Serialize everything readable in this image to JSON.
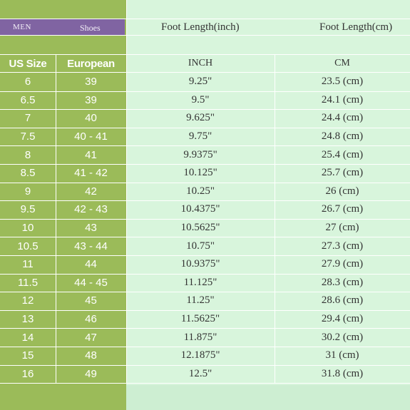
{
  "header": {
    "men_label": "MEN",
    "shoes_label": "Shoes",
    "foot_length_inch": "Foot Length(inch)",
    "foot_length_cm": "Foot Length(cm)"
  },
  "columns": {
    "us_size": "US Size",
    "european": "European",
    "inch": "INCH",
    "cm": "CM"
  },
  "rows": [
    {
      "us": "6",
      "eu": "39",
      "inch": "9.25\"",
      "cm": "23.5 (cm)"
    },
    {
      "us": "6.5",
      "eu": "39",
      "inch": "9.5\"",
      "cm": "24.1 (cm)"
    },
    {
      "us": "7",
      "eu": "40",
      "inch": "9.625\"",
      "cm": "24.4 (cm)"
    },
    {
      "us": "7.5",
      "eu": "40 - 41",
      "inch": "9.75\"",
      "cm": "24.8 (cm)"
    },
    {
      "us": "8",
      "eu": "41",
      "inch": "9.9375\"",
      "cm": "25.4 (cm)"
    },
    {
      "us": "8.5",
      "eu": "41 - 42",
      "inch": "10.125\"",
      "cm": "25.7 (cm)"
    },
    {
      "us": "9",
      "eu": "42",
      "inch": "10.25\"",
      "cm": "26 (cm)"
    },
    {
      "us": "9.5",
      "eu": "42 - 43",
      "inch": "10.4375\"",
      "cm": "26.7 (cm)"
    },
    {
      "us": "10",
      "eu": "43",
      "inch": "10.5625\"",
      "cm": "27 (cm)"
    },
    {
      "us": "10.5",
      "eu": "43 - 44",
      "inch": "10.75\"",
      "cm": "27.3 (cm)"
    },
    {
      "us": "11",
      "eu": "44",
      "inch": "10.9375\"",
      "cm": "27.9 (cm)"
    },
    {
      "us": "11.5",
      "eu": "44 - 45",
      "inch": "11.125\"",
      "cm": "28.3 (cm)"
    },
    {
      "us": "12",
      "eu": "45",
      "inch": "11.25\"",
      "cm": "28.6 (cm)"
    },
    {
      "us": "13",
      "eu": "46",
      "inch": "11.5625\"",
      "cm": "29.4 (cm)"
    },
    {
      "us": "14",
      "eu": "47",
      "inch": "11.875\"",
      "cm": "30.2 (cm)"
    },
    {
      "us": "15",
      "eu": "48",
      "inch": "12.1875\"",
      "cm": "31 (cm)"
    },
    {
      "us": "16",
      "eu": "49",
      "inch": "12.5\"",
      "cm": "31.8 (cm)"
    }
  ],
  "colors": {
    "left_green": "#9bbb59",
    "right_mint": "#d8f5dc",
    "men_purple": "#8064a2"
  }
}
